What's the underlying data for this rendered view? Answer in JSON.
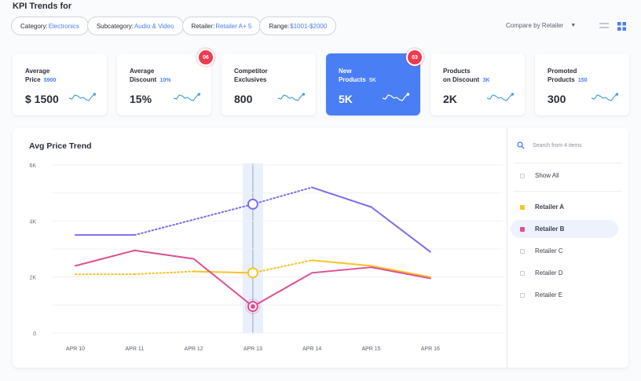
{
  "page": {
    "title": "KPI Trends for"
  },
  "filters": [
    {
      "key": "Category:",
      "value": "Electronics"
    },
    {
      "key": "Subcategory:",
      "value": "Audio & Video"
    },
    {
      "key": "Retailer:",
      "value": "Retailer A+ 5"
    },
    {
      "key": "Range:",
      "value": "$1001-$2000"
    }
  ],
  "compare": {
    "label": "Compare by Retailer"
  },
  "kpis": [
    {
      "line1": "Average",
      "line2": "Price",
      "sub": "$900",
      "value": "$ 1500",
      "badge": "",
      "active": false
    },
    {
      "line1": "Average",
      "line2": "Discount",
      "sub": "10%",
      "value": "15%",
      "badge": "06",
      "active": false
    },
    {
      "line1": "Competitor",
      "line2": "Exclusives",
      "sub": "",
      "value": "800",
      "badge": "",
      "active": false
    },
    {
      "line1": "New",
      "line2": "Products",
      "sub": "5K",
      "value": "5K",
      "badge": "03",
      "active": true
    },
    {
      "line1": "Products",
      "line2": "on Discount",
      "sub": "3K",
      "value": "2K",
      "badge": "",
      "active": false
    },
    {
      "line1": "Promoted",
      "line2": "Products",
      "sub": "150",
      "value": "300",
      "badge": "",
      "active": false
    }
  ],
  "search": {
    "placeholder": "Search from 4 items"
  },
  "legend": [
    {
      "label": "Show All",
      "color": "",
      "selected": false,
      "bold": false
    },
    {
      "label": "Retailer A",
      "color": "#f7c325",
      "selected": false,
      "bold": true
    },
    {
      "label": "Retailer B",
      "color": "#dd4f93",
      "selected": true,
      "bold": true
    },
    {
      "label": "Retailer C",
      "color": "",
      "selected": false,
      "bold": false
    },
    {
      "label": "Retailer D",
      "color": "",
      "selected": false,
      "bold": false
    },
    {
      "label": "Retailer E",
      "color": "",
      "selected": false,
      "bold": false
    }
  ],
  "colors": {
    "accent": "#4a7ef5",
    "badge": "#ee3b50",
    "purple": "#7b6cf0",
    "pink": "#dd4f93",
    "yellow": "#f7c325"
  },
  "chart_data": {
    "type": "line",
    "title": "Avg Price Trend",
    "categories": [
      "APR 10",
      "APR 11",
      "APR 12",
      "APR 13",
      "APR 14",
      "APR 15",
      "APR 16"
    ],
    "y_ticks": [
      "0",
      "2K",
      "4K",
      "6K"
    ],
    "ylim": [
      0,
      6000
    ],
    "grid": true,
    "highlight_category": "APR 13",
    "series": [
      {
        "color": "#7b6cf0",
        "values": [
          3500,
          3500,
          null,
          4600,
          5200,
          4500,
          2900
        ],
        "dotted_segments": [
          [
            1,
            4
          ]
        ]
      },
      {
        "color": "#f7c325",
        "values": [
          2100,
          2100,
          2200,
          2150,
          2600,
          2400,
          2000
        ],
        "dotted_segments": [
          [
            0,
            2
          ],
          [
            3,
            4
          ]
        ]
      },
      {
        "color": "#dd4f93",
        "values": [
          2400,
          2950,
          2650,
          950,
          2150,
          2350,
          1950
        ],
        "dotted_segments": []
      }
    ]
  }
}
